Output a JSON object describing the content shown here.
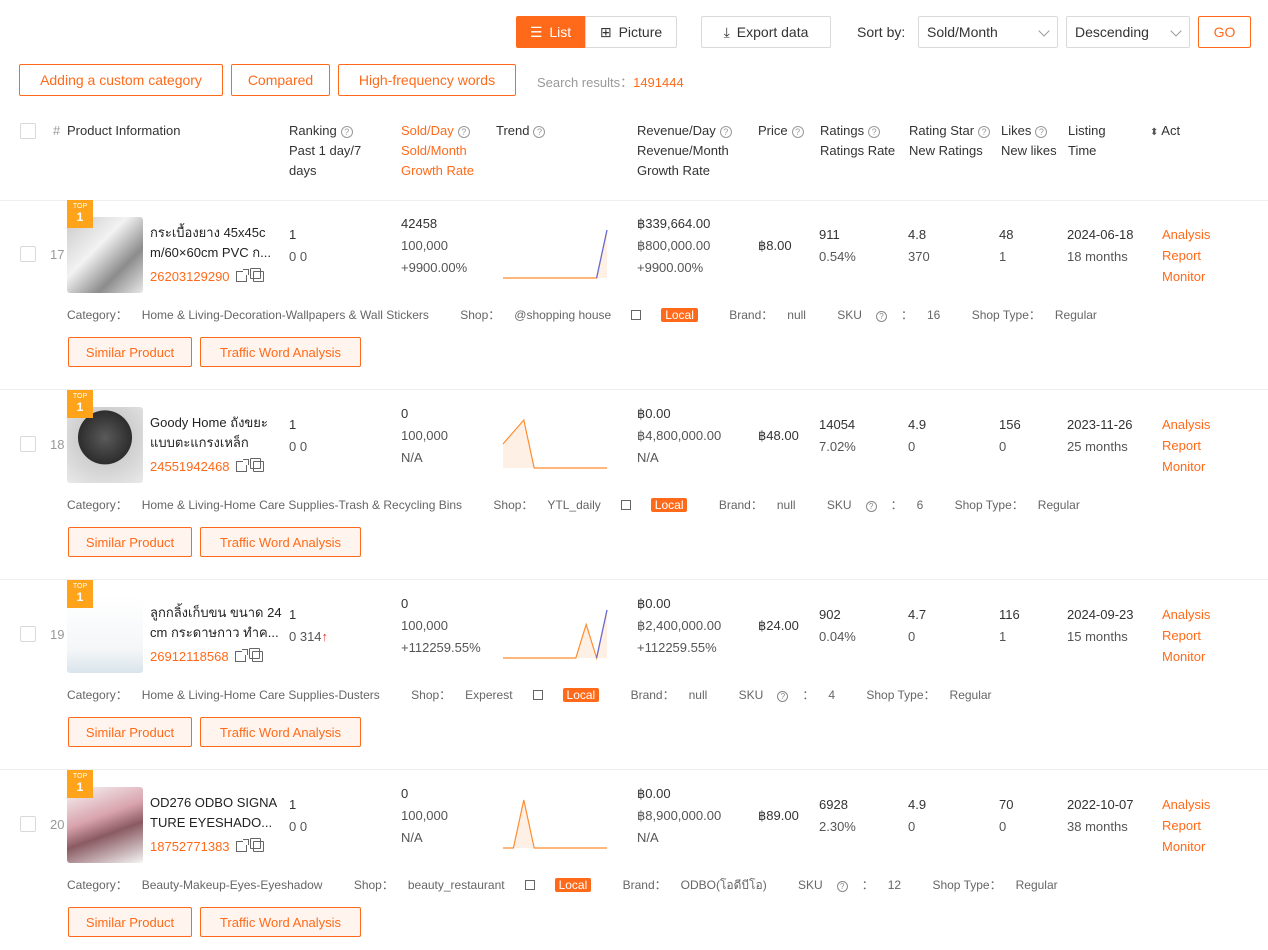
{
  "toolbar": {
    "list_label": "List",
    "picture_label": "Picture",
    "export_label": "Export data",
    "sort_by_label": "Sort by:",
    "sort_value": "Sold/Month",
    "order_value": "Descending",
    "go_label": "GO"
  },
  "filters": {
    "custom_category": "Adding a custom category",
    "compared": "Compared",
    "high_freq": "High-frequency words",
    "search_results_label": "Search results：",
    "search_results_count": "1491444"
  },
  "header": {
    "index": "#",
    "product_info": "Product Information",
    "ranking_1": "Ranking",
    "ranking_2": "Past 1 day/7",
    "ranking_3": "days",
    "sold_1": "Sold/Day",
    "sold_2": "Sold/Month",
    "sold_3": "Growth Rate",
    "trend": "Trend",
    "rev_1": "Revenue/Day",
    "rev_2": "Revenue/Month",
    "rev_3": "Growth Rate",
    "price": "Price",
    "ratings_1": "Ratings",
    "ratings_2": "Ratings Rate",
    "star_1": "Rating Star",
    "star_2": "New Ratings",
    "likes_1": "Likes",
    "likes_2": "New likes",
    "listing_1": "Listing",
    "listing_2": "Time",
    "act": "Act"
  },
  "badge": {
    "top": "TOP",
    "rank": "1"
  },
  "labels": {
    "analysis": "Analysis",
    "report": "Report",
    "monitor": "Monitor",
    "similar": "Similar Product",
    "traffic": "Traffic Word Analysis",
    "category": "Category：",
    "shop": "Shop：",
    "brand": "Brand：",
    "sku": "SKU",
    "sku_colon": "：",
    "shop_type": "Shop Type：",
    "local": "Local"
  },
  "products": [
    {
      "index": "17",
      "name": "กระเบื้องยาง 45x45c m/60×60cm PVC ก...",
      "id": "26203129290",
      "rank_1": "1",
      "rank_2": "0 0",
      "rank_arrow": "",
      "sold_day": "42458",
      "sold_month": "100,000",
      "growth": "+9900.00%",
      "rev_day": "฿339,664.00",
      "rev_month": "฿800,000.00",
      "rev_growth": "+9900.00%",
      "price": "฿8.00",
      "ratings": "911",
      "ratings_rate": "0.54%",
      "star": "4.8",
      "new_ratings": "370",
      "likes": "48",
      "new_likes": "1",
      "listing_date": "2024-06-18",
      "listing_age": "18 months",
      "category": "Home & Living-Decoration-Wallpapers & Wall Stickers",
      "shop": "@shopping house",
      "brand": "null",
      "sku": "16",
      "shop_type": "Regular",
      "trend": [
        0,
        0,
        0,
        0,
        0,
        0,
        0,
        0,
        0,
        0,
        1
      ]
    },
    {
      "index": "18",
      "name": "Goody Home ถังขยะแบบตะแกรงเหล็ก ไม่มี...",
      "id": "24551942468",
      "rank_1": "1",
      "rank_2": "0 0",
      "rank_arrow": "",
      "sold_day": "0",
      "sold_month": "100,000",
      "growth": "N/A",
      "rev_day": "฿0.00",
      "rev_month": "฿4,800,000.00",
      "rev_growth": "N/A",
      "price": "฿48.00",
      "ratings": "14054",
      "ratings_rate": "7.02%",
      "star": "4.9",
      "new_ratings": "0",
      "likes": "156",
      "new_likes": "0",
      "listing_date": "2023-11-26",
      "listing_age": "25 months",
      "category": "Home & Living-Home Care Supplies-Trash & Recycling Bins",
      "shop": "YTL_daily",
      "brand": "null",
      "sku": "6",
      "shop_type": "Regular",
      "trend": [
        0.5,
        0.75,
        1,
        0,
        0,
        0,
        0,
        0,
        0,
        0,
        0
      ]
    },
    {
      "index": "19",
      "name": "ลูกกลิ้งเก็บขน ขนาด 24 cm กระดาษกาว ทำค...",
      "id": "26912118568",
      "rank_1": "1",
      "rank_2": "0 314",
      "rank_arrow": "↑",
      "sold_day": "0",
      "sold_month": "100,000",
      "growth": "+112259.55%",
      "rev_day": "฿0.00",
      "rev_month": "฿2,400,000.00",
      "rev_growth": "+112259.55%",
      "price": "฿24.00",
      "ratings": "902",
      "ratings_rate": "0.04%",
      "star": "4.7",
      "new_ratings": "0",
      "likes": "116",
      "new_likes": "1",
      "listing_date": "2024-09-23",
      "listing_age": "15 months",
      "category": "Home & Living-Home Care Supplies-Dusters",
      "shop": "Experest",
      "brand": "null",
      "sku": "4",
      "shop_type": "Regular",
      "trend": [
        0,
        0,
        0,
        0,
        0,
        0,
        0,
        0,
        0.7,
        0,
        1
      ]
    },
    {
      "index": "20",
      "name": "OD276 ODBO SIGNA TURE EYESHADO...",
      "id": "18752771383",
      "rank_1": "1",
      "rank_2": "0 0",
      "rank_arrow": "",
      "sold_day": "0",
      "sold_month": "100,000",
      "growth": "N/A",
      "rev_day": "฿0.00",
      "rev_month": "฿8,900,000.00",
      "rev_growth": "N/A",
      "price": "฿89.00",
      "ratings": "6928",
      "ratings_rate": "2.30%",
      "star": "4.9",
      "new_ratings": "0",
      "likes": "70",
      "new_likes": "0",
      "listing_date": "2022-10-07",
      "listing_age": "38 months",
      "category": "Beauty-Makeup-Eyes-Eyeshadow",
      "shop": "beauty_restaurant",
      "brand": "ODBO(โอดีบีโอ)",
      "sku": "12",
      "shop_type": "Regular",
      "trend": [
        0,
        0,
        1,
        0,
        0,
        0,
        0,
        0,
        0,
        0,
        0
      ]
    }
  ],
  "colors": {
    "accent": "#ff6a1a",
    "badge": "#ffa31a",
    "trend_line": "#ff8c2e",
    "trend_spike": "#5b6de0"
  }
}
